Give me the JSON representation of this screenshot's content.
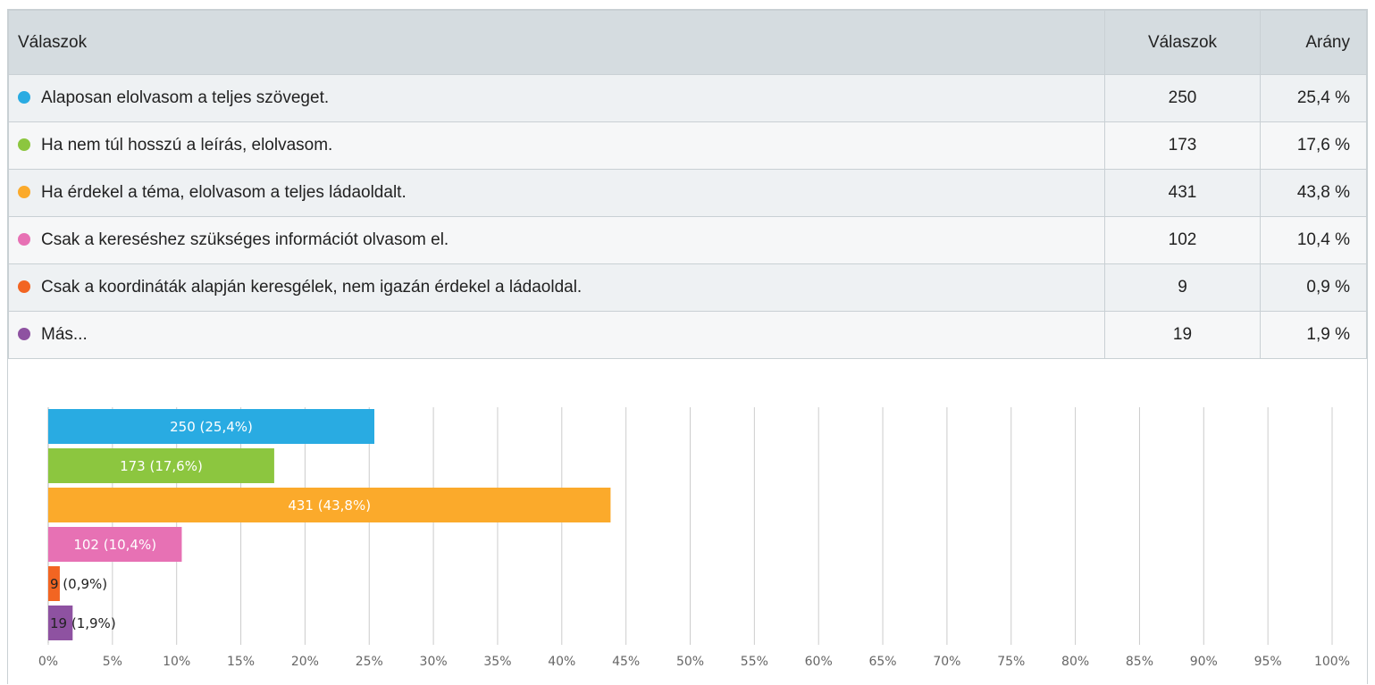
{
  "table": {
    "header": [
      "Válaszok",
      "Válaszok",
      "Arány"
    ],
    "rows": [
      [
        "Alaposan elolvasom a teljes szöveget.",
        250,
        "25,4 %"
      ],
      [
        "Ha nem túl hosszú a leírás, elolvasom.",
        173,
        "17,6 %"
      ],
      [
        "Ha érdekel a téma, elolvasom a teljes ládaoldalt.",
        431,
        "43,8 %"
      ],
      [
        "Csak a kereséshez szükséges információt olvasom el.",
        102,
        "10,4 %"
      ],
      [
        "Csak a koordináták alapján keresgélek, nem igazán érdekel a ládaoldal.",
        9,
        "0,9 %"
      ],
      [
        "Más...",
        19,
        "1,9 %"
      ]
    ]
  },
  "chart_data": {
    "type": "hbar",
    "values": [
      25.4,
      17.6,
      43.8,
      10.4,
      0.9,
      1.9
    ],
    "value_labels": [
      "250 (25,4%)",
      "173 (17,6%)",
      "431 (43,8%)",
      "102 (10,4%)",
      "9 (0,9%)",
      "19 (1,9%)"
    ],
    "colors": [
      "#29abe2",
      "#8cc63f",
      "#fbaa2b",
      "#e771b4",
      "#f26522",
      "#8e52a1"
    ],
    "xlim": [
      0,
      100
    ],
    "xticks": [
      {
        "value": 0,
        "label": "0%"
      },
      {
        "value": 5,
        "label": "5%"
      },
      {
        "value": 10,
        "label": "10%"
      },
      {
        "value": 15,
        "label": "15%"
      },
      {
        "value": 20,
        "label": "20%"
      },
      {
        "value": 25,
        "label": "25%"
      },
      {
        "value": 30,
        "label": "30%"
      },
      {
        "value": 35,
        "label": "35%"
      },
      {
        "value": 40,
        "label": "40%"
      },
      {
        "value": 45,
        "label": "45%"
      },
      {
        "value": 50,
        "label": "50%"
      },
      {
        "value": 55,
        "label": "55%"
      },
      {
        "value": 60,
        "label": "60%"
      },
      {
        "value": 65,
        "label": "65%"
      },
      {
        "value": 70,
        "label": "70%"
      },
      {
        "value": 75,
        "label": "75%"
      },
      {
        "value": 80,
        "label": "80%"
      },
      {
        "value": 85,
        "label": "85%"
      },
      {
        "value": 90,
        "label": "90%"
      },
      {
        "value": 95,
        "label": "95%"
      },
      {
        "value": 100,
        "label": "100%"
      }
    ],
    "grid": true
  }
}
